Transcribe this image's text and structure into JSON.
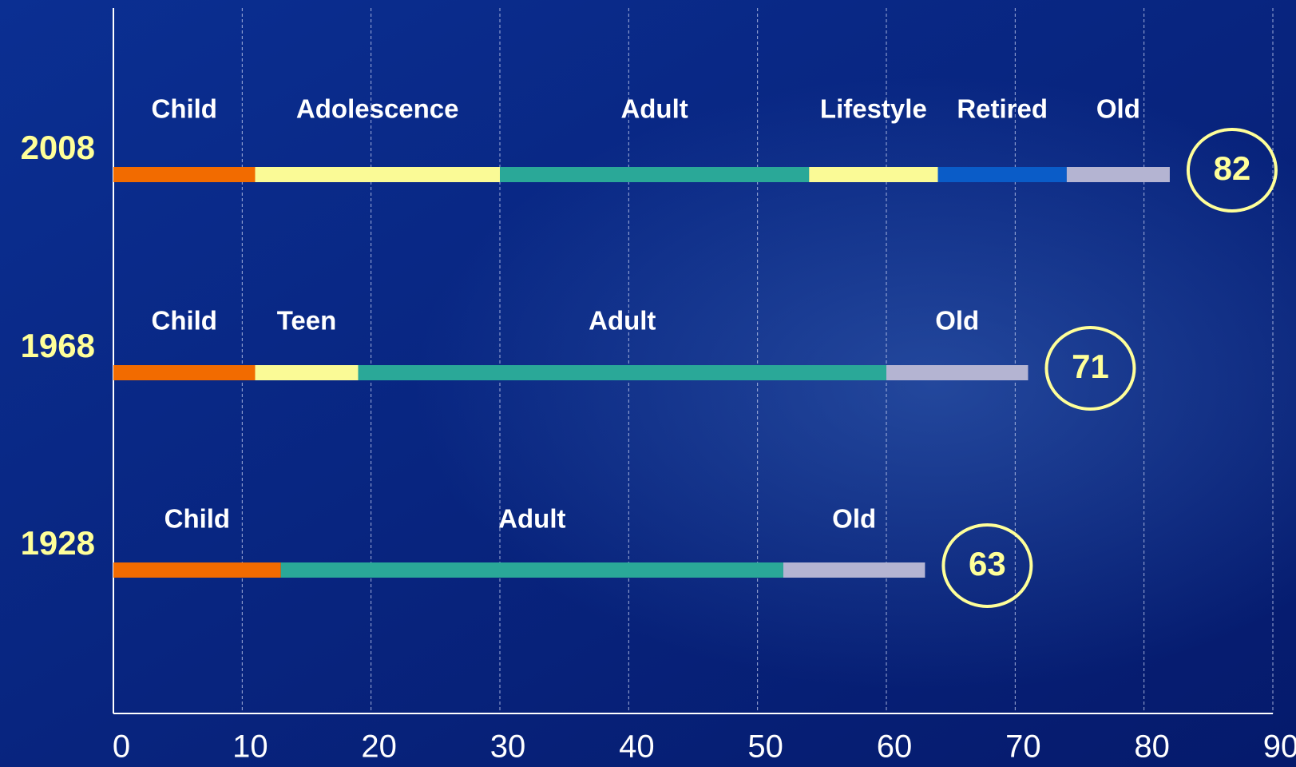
{
  "chart_data": {
    "type": "stacked-timeline",
    "xlim": [
      0,
      90
    ],
    "xticks": [
      0,
      10,
      20,
      30,
      40,
      50,
      60,
      70,
      80,
      90
    ],
    "grid": true,
    "rows": [
      {
        "name": "2008",
        "total": 82,
        "segments": [
          {
            "name": "Child",
            "value": 11,
            "color": "#f26b00"
          },
          {
            "name": "Adolescence",
            "value": 19,
            "color": "#fafa96"
          },
          {
            "name": "Adult",
            "value": 24,
            "color": "#2aa898"
          },
          {
            "name": "Lifestyle",
            "value": 10,
            "color": "#fafa96"
          },
          {
            "name": "Retired",
            "value": 10,
            "color": "#0a5cc8"
          },
          {
            "name": "Old",
            "value": 8,
            "color": "#b4b4d2"
          }
        ]
      },
      {
        "name": "1968",
        "total": 71,
        "segments": [
          {
            "name": "Child",
            "value": 11,
            "color": "#f26b00"
          },
          {
            "name": "Teen",
            "value": 8,
            "color": "#fafa96"
          },
          {
            "name": "Adult",
            "value": 41,
            "color": "#2aa898"
          },
          {
            "name": "Old",
            "value": 11,
            "color": "#b4b4d2"
          }
        ]
      },
      {
        "name": "1928",
        "total": 63,
        "segments": [
          {
            "name": "Child",
            "value": 13,
            "color": "#f26b00"
          },
          {
            "name": "Adult",
            "value": 39,
            "color": "#2aa898"
          },
          {
            "name": "Old",
            "value": 11,
            "color": "#b4b4d2"
          }
        ]
      }
    ]
  }
}
